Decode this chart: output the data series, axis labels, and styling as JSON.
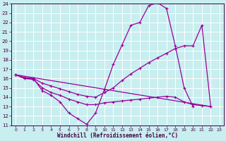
{
  "background_color": "#c8eef0",
  "line_color": "#990099",
  "grid_color": "#ffffff",
  "xlabel": "Windchill (Refroidissement éolien,°C)",
  "xlim_min": -0.5,
  "xlim_max": 23.5,
  "ylim_min": 11,
  "ylim_max": 24,
  "x_ticks": [
    0,
    1,
    2,
    3,
    4,
    5,
    6,
    7,
    8,
    9,
    10,
    11,
    12,
    13,
    14,
    15,
    16,
    17,
    18,
    19,
    20,
    21,
    22,
    23
  ],
  "y_ticks": [
    11,
    12,
    13,
    14,
    15,
    16,
    17,
    18,
    19,
    20,
    21,
    22,
    23,
    24
  ],
  "curve1_x": [
    0,
    1,
    2,
    3,
    4,
    5,
    6,
    7,
    8,
    9,
    10,
    11,
    12,
    13,
    14,
    15,
    16,
    17,
    18,
    19,
    20,
    21,
    22
  ],
  "curve1_y": [
    16.4,
    16.0,
    16.0,
    14.7,
    14.2,
    13.5,
    12.3,
    11.7,
    11.1,
    12.3,
    14.8,
    17.5,
    19.6,
    21.7,
    22.0,
    23.8,
    24.1,
    23.5,
    19.5,
    15.0,
    13.0,
    13.0,
    13.0
  ],
  "curve2_x": [
    0,
    1,
    2,
    3,
    4,
    5,
    6,
    7,
    8,
    9,
    10,
    11,
    12,
    13,
    14,
    15,
    16,
    17,
    18,
    19,
    20,
    21,
    22
  ],
  "curve2_y": [
    16.4,
    16.1,
    16.0,
    15.5,
    15.2,
    14.9,
    14.6,
    14.3,
    14.1,
    14.0,
    14.5,
    15.0,
    15.8,
    16.5,
    17.1,
    17.7,
    18.2,
    18.7,
    19.2,
    19.5,
    19.5,
    21.7,
    13.0
  ],
  "curve3_x": [
    0,
    1,
    2,
    3,
    4,
    5,
    6,
    7,
    8,
    9,
    10,
    11,
    12,
    13,
    14,
    15,
    16,
    17,
    18,
    19,
    20,
    21,
    22
  ],
  "curve3_y": [
    16.4,
    16.0,
    15.9,
    15.0,
    14.5,
    14.2,
    13.8,
    13.5,
    13.2,
    13.2,
    13.4,
    13.5,
    13.6,
    13.7,
    13.8,
    13.9,
    14.0,
    14.1,
    14.0,
    13.5,
    13.2,
    13.1,
    13.0
  ],
  "line4_x": [
    0,
    22
  ],
  "line4_y": [
    16.4,
    13.0
  ]
}
